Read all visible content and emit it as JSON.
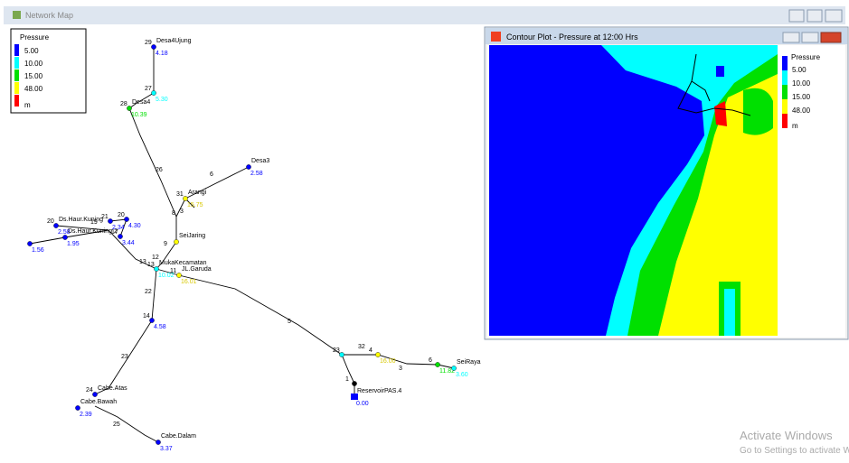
{
  "main_window": {
    "title": "Network Map"
  },
  "legend": {
    "title": "Pressure",
    "levels": [
      "5.00",
      "10.00",
      "15.00",
      "48.00"
    ],
    "unit": "m",
    "colors": [
      "#0000ff",
      "#00ffff",
      "#00e000",
      "#ffff00",
      "#ff0000"
    ]
  },
  "contour_window": {
    "title": "Contour Plot - Pressure at 12:00 Hrs",
    "legend": {
      "title": "Pressure",
      "levels": [
        "5.00",
        "10.00",
        "15.00",
        "48.00"
      ],
      "unit": "m"
    }
  },
  "network": {
    "nodes": [
      {
        "id": "29",
        "label": "Desa4Ujung",
        "value": "4.18",
        "color": "#0000ff"
      },
      {
        "id": "27",
        "value": "5.30",
        "color": "#00ffff"
      },
      {
        "id": "28",
        "label": "Desa4",
        "value": "10.39",
        "color": "#00e000"
      },
      {
        "label": "Desa3",
        "value": "2.58",
        "color": "#0000ff"
      },
      {
        "id": "31",
        "label": "Arangi",
        "value": "15.75",
        "color": "#ffff00"
      },
      {
        "label": "SeiJaring",
        "color": "#ffff00"
      },
      {
        "id": "13",
        "label": "MukaKecamatan",
        "value": "10.02",
        "color": "#00ffff"
      },
      {
        "id": "11",
        "label": "JL.Garuda",
        "value": "16.01",
        "color": "#ffff00"
      },
      {
        "id": "14",
        "value": "4.58",
        "color": "#0000ff"
      },
      {
        "id": "24",
        "label": "Cabe.Atas",
        "color": "#0000ff"
      },
      {
        "label": "Cabe.Bawah",
        "value": "2.39",
        "color": "#0000ff"
      },
      {
        "label": "Cabe.Dalam",
        "value": "3.37",
        "color": "#0000ff"
      },
      {
        "id": "20",
        "label": "Ds.Haur.Kuning",
        "value": "2.58",
        "color": "#0000ff"
      },
      {
        "label": "Ds.Haur.Kuning 2",
        "value": "1.95",
        "color": "#0000ff"
      },
      {
        "value": "1.56",
        "color": "#0000ff"
      },
      {
        "id": "21",
        "value": "2.34",
        "color": "#0000ff"
      },
      {
        "id": "20",
        "value": "4.30",
        "color": "#0000ff"
      },
      {
        "id": "17",
        "value": "3.44",
        "color": "#0000ff"
      },
      {
        "id": "23",
        "color": "#00ffff"
      },
      {
        "id": "4",
        "value": "16.00",
        "color": "#ffff00"
      },
      {
        "id": "6",
        "value": "11.82",
        "color": "#00e000"
      },
      {
        "label": "SeiRaya",
        "value": "3.60",
        "color": "#00ffff"
      },
      {
        "label": "ReservoirPAS.4",
        "value": "0.00",
        "color": "#0000ff"
      },
      {
        "id": "1",
        "color": "#000000"
      }
    ],
    "links": [
      "26",
      "6",
      "8",
      "3",
      "9",
      "12",
      "13",
      "22",
      "23",
      "25",
      "19",
      "5",
      "32",
      "3"
    ]
  },
  "watermark": {
    "line1": "Activate Windows",
    "line2": "Go to Settings to activate Windows."
  }
}
